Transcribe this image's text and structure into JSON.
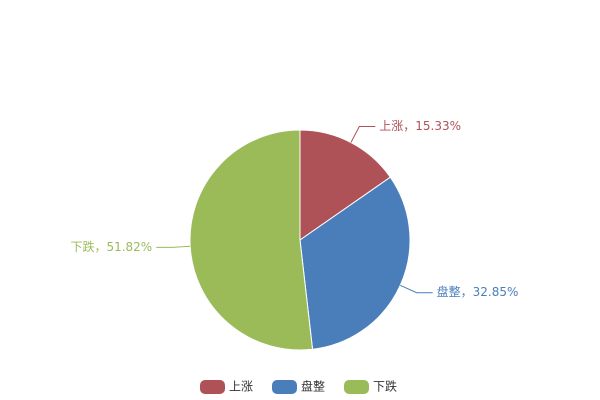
{
  "chart_data": {
    "type": "pie",
    "categories": [
      "上涨",
      "盘整",
      "下跌"
    ],
    "values": [
      15.33,
      32.85,
      51.82
    ],
    "value_labels": [
      "上涨，15.33%",
      "盘整，32.85%",
      "下跌，51.82%"
    ],
    "colors": [
      "#af5257",
      "#4a7ebb",
      "#9bbb59"
    ],
    "legend": "bottom"
  }
}
